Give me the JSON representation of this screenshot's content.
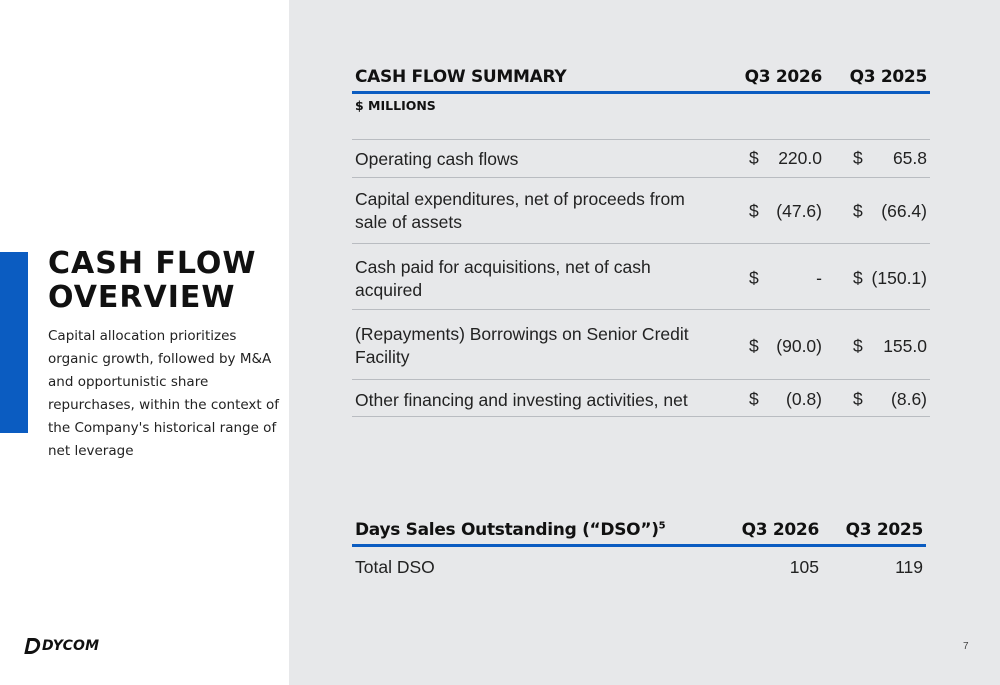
{
  "left": {
    "title_line1": "CASH FLOW",
    "title_line2": "OVERVIEW",
    "subtitle": "Capital allocation prioritizes organic growth, followed by M&A and opportunistic share repurchases, within the context of the Company's historical range of net leverage",
    "logo_text": "DYCOM"
  },
  "cash_flow": {
    "title": "CASH FLOW SUMMARY",
    "col1": "Q3 2026",
    "col2": "Q3 2025",
    "unit": "$ MILLIONS",
    "currency": "$",
    "rows": [
      {
        "label": "Operating cash flows",
        "v1": "220.0",
        "v2": "65.8"
      },
      {
        "label": "Capital expenditures, net of proceeds from sale of assets",
        "v1": "(47.6)",
        "v2": "(66.4)"
      },
      {
        "label": "Cash paid for acquisitions, net of cash acquired",
        "v1": "-",
        "v2": "(150.1)"
      },
      {
        "label": "(Repayments) Borrowings on Senior Credit Facility",
        "v1": "(90.0)",
        "v2": "155.0"
      },
      {
        "label": "Other financing and investing activities, net",
        "v1": "(0.8)",
        "v2": "(8.6)"
      }
    ]
  },
  "dso": {
    "title": "Days Sales Outstanding (“DSO”)",
    "footnote": "5",
    "col1": "Q3 2026",
    "col2": "Q3 2025",
    "rows": [
      {
        "label": "Total DSO",
        "v1": "105",
        "v2": "119"
      }
    ]
  },
  "page_number": "7",
  "colors": {
    "accent": "#0b5cc1",
    "panel": "#e7e8ea"
  }
}
